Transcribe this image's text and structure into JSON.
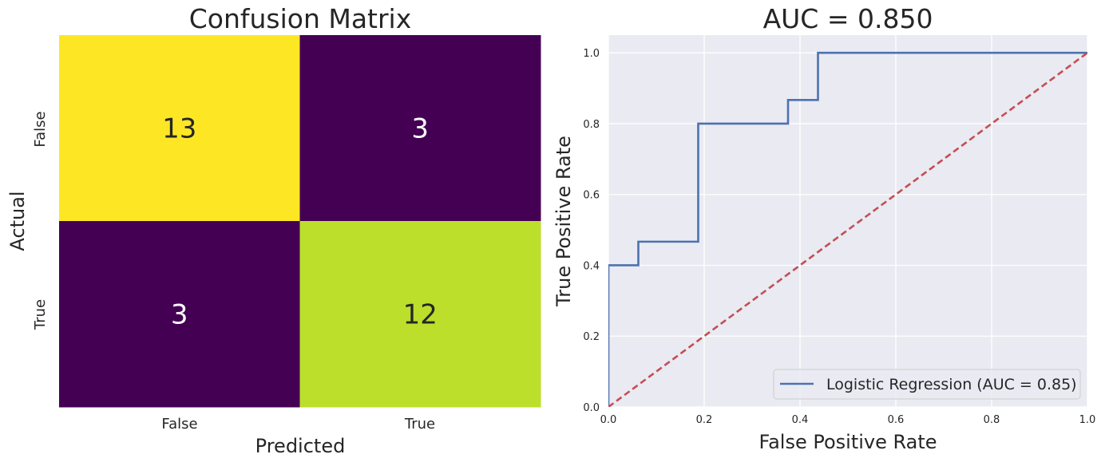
{
  "chart_data": [
    {
      "type": "heatmap",
      "title": "Confusion Matrix",
      "xlabel": "Predicted",
      "ylabel": "Actual",
      "x_categories": [
        "False",
        "True"
      ],
      "y_categories": [
        "False",
        "True"
      ],
      "values": [
        [
          13,
          3
        ],
        [
          3,
          12
        ]
      ],
      "colormap": "viridis",
      "colorbar": false,
      "value_range": [
        3,
        13
      ]
    },
    {
      "type": "line",
      "title": "AUC = 0.850",
      "xlabel": "False Positive Rate",
      "ylabel": "True Positive Rate",
      "xlim": [
        0,
        1
      ],
      "ylim": [
        0,
        1.05
      ],
      "xticks": [
        "0.0",
        "0.2",
        "0.4",
        "0.6",
        "0.8",
        "1.0"
      ],
      "yticks": [
        "0.0",
        "0.2",
        "0.4",
        "0.6",
        "0.8",
        "1.0"
      ],
      "grid": true,
      "legend_position": "lower-right",
      "series": [
        {
          "name": "Logistic Regression (AUC = 0.85)",
          "color": "#4c72b0",
          "x": [
            0,
            0,
            0.0625,
            0.0625,
            0.1875,
            0.1875,
            0.375,
            0.375,
            0.4375,
            0.4375,
            1
          ],
          "y": [
            0,
            0.4,
            0.4,
            0.4667,
            0.4667,
            0.8,
            0.8,
            0.8667,
            0.8667,
            1,
            1
          ]
        },
        {
          "color": "#c44e52",
          "style": "dashed",
          "x": [
            0,
            1
          ],
          "y": [
            0,
            1
          ]
        }
      ]
    }
  ],
  "colors": {
    "plot_background": "#eaeaf2",
    "grid": "#ffffff",
    "text": "#262626"
  }
}
